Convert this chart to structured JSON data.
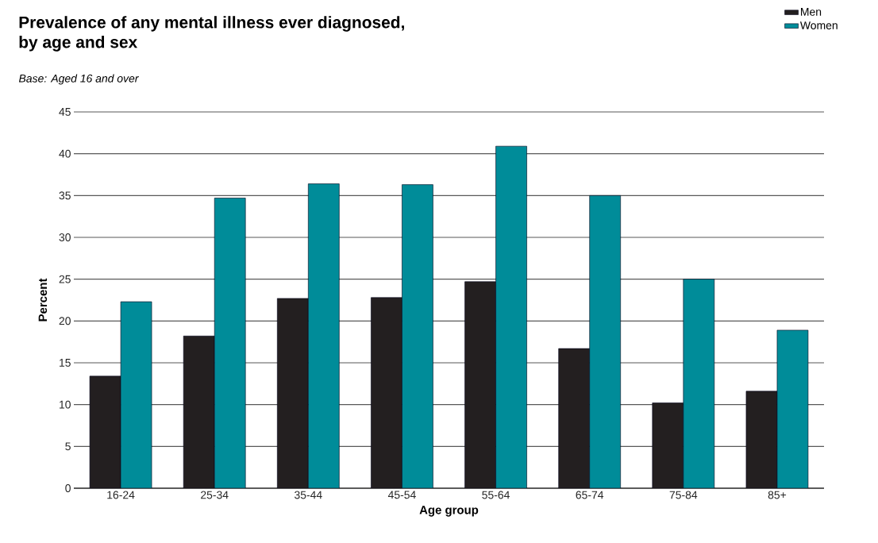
{
  "chart_data": {
    "type": "bar",
    "title": "Prevalence of any mental illness ever diagnosed,\nby age and sex",
    "subtitle": "Base: Aged 16 and over",
    "xlabel": "Age group",
    "ylabel": "Percent",
    "categories": [
      "16-24",
      "25-34",
      "35-44",
      "45-54",
      "55-64",
      "65-74",
      "75-84",
      "85+"
    ],
    "series": [
      {
        "name": "Men",
        "color": "#231f20",
        "values": [
          13.4,
          18.2,
          22.7,
          22.8,
          24.7,
          16.7,
          10.2,
          11.6
        ]
      },
      {
        "name": "Women",
        "color": "#008c99",
        "values": [
          22.3,
          34.7,
          36.4,
          36.3,
          40.9,
          35.0,
          25.0,
          18.9
        ]
      }
    ],
    "ylim": [
      0,
      45
    ],
    "yticks": [
      0,
      5,
      10,
      15,
      20,
      25,
      30,
      35,
      40,
      45
    ],
    "grid": "y",
    "legend": "top right"
  }
}
